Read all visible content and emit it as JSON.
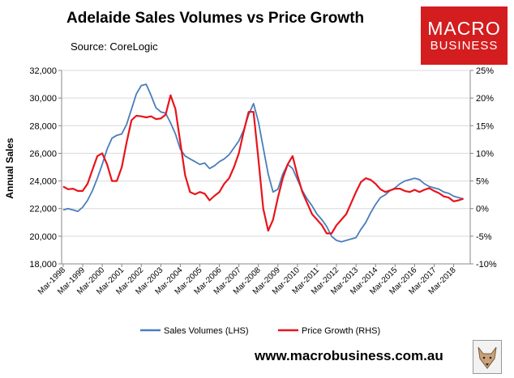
{
  "chart_data": {
    "type": "line",
    "title": "Adelaide Sales Volumes vs Price Growth",
    "subtitle": "Source: CoreLogic",
    "ylabel_left": "Annual Sales",
    "ylabel_right": "",
    "xlabel": "",
    "ylim_left": [
      18000,
      32000
    ],
    "ylim_right": [
      -10,
      25
    ],
    "y_ticks_left": [
      "18,000",
      "20,000",
      "22,000",
      "24,000",
      "26,000",
      "28,000",
      "30,000",
      "32,000"
    ],
    "y_ticks_right": [
      "-10%",
      "-5%",
      "0%",
      "5%",
      "10%",
      "15%",
      "20%",
      "25%"
    ],
    "x_ticks": [
      "Mar-1998",
      "Mar-1999",
      "Mar-2000",
      "Mar-2001",
      "Mar-2002",
      "Mar-2003",
      "Mar-2004",
      "Mar-2005",
      "Mar-2006",
      "Mar-2007",
      "Mar-2008",
      "Mar-2009",
      "Mar-2010",
      "Mar-2011",
      "Mar-2012",
      "Mar-2013",
      "Mar-2014",
      "Mar-2015",
      "Mar-2016",
      "Mar-2017",
      "Mar-2018"
    ],
    "legend_position": "bottom",
    "series": [
      {
        "name": "Sales Volumes (LHS)",
        "axis": "left",
        "color": "#4a7ebb",
        "x": [
          1998.0,
          1998.25,
          1998.5,
          1998.75,
          1999.0,
          1999.25,
          1999.5,
          1999.75,
          2000.0,
          2000.25,
          2000.5,
          2000.75,
          2001.0,
          2001.25,
          2001.5,
          2001.75,
          2002.0,
          2002.25,
          2002.5,
          2002.75,
          2003.0,
          2003.25,
          2003.5,
          2003.75,
          2004.0,
          2004.25,
          2004.5,
          2004.75,
          2005.0,
          2005.25,
          2005.5,
          2005.75,
          2006.0,
          2006.25,
          2006.5,
          2006.75,
          2007.0,
          2007.25,
          2007.5,
          2007.75,
          2008.0,
          2008.25,
          2008.5,
          2008.75,
          2009.0,
          2009.25,
          2009.5,
          2009.75,
          2010.0,
          2010.25,
          2010.5,
          2010.75,
          2011.0,
          2011.25,
          2011.5,
          2011.75,
          2012.0,
          2012.25,
          2012.5,
          2012.75,
          2013.0,
          2013.25,
          2013.5,
          2013.75,
          2014.0,
          2014.25,
          2014.5,
          2014.75,
          2015.0,
          2015.25,
          2015.5,
          2015.75,
          2016.0,
          2016.25,
          2016.5,
          2016.75,
          2017.0,
          2017.25,
          2017.5,
          2017.75,
          2018.0,
          2018.25,
          2018.5
        ],
        "values": [
          21900,
          22000,
          21900,
          21800,
          22100,
          22600,
          23300,
          24200,
          25200,
          26300,
          27100,
          27300,
          27400,
          28100,
          29200,
          30300,
          30900,
          31000,
          30200,
          29300,
          29000,
          28900,
          28200,
          27400,
          26300,
          25800,
          25600,
          25400,
          25200,
          25300,
          24900,
          25100,
          25400,
          25600,
          25900,
          26400,
          26900,
          27700,
          28800,
          29600,
          28300,
          26400,
          24500,
          23200,
          23400,
          24500,
          25200,
          24900,
          24100,
          23300,
          22700,
          22200,
          21600,
          21200,
          20700,
          20000,
          19700,
          19600,
          19700,
          19800,
          19900,
          20500,
          21000,
          21700,
          22300,
          22800,
          23000,
          23300,
          23500,
          23800,
          24000,
          24100,
          24200,
          24100,
          23800,
          23600,
          23500,
          23400,
          23200,
          23100,
          22900,
          22800,
          22700
        ]
      },
      {
        "name": "Price Growth (RHS)",
        "axis": "right",
        "color": "#e8141b",
        "x": [
          1998.0,
          1998.25,
          1998.5,
          1998.75,
          1999.0,
          1999.25,
          1999.5,
          1999.75,
          2000.0,
          2000.25,
          2000.5,
          2000.75,
          2001.0,
          2001.25,
          2001.5,
          2001.75,
          2002.0,
          2002.25,
          2002.5,
          2002.75,
          2003.0,
          2003.25,
          2003.5,
          2003.75,
          2004.0,
          2004.25,
          2004.5,
          2004.75,
          2005.0,
          2005.25,
          2005.5,
          2005.75,
          2006.0,
          2006.25,
          2006.5,
          2006.75,
          2007.0,
          2007.25,
          2007.5,
          2007.75,
          2008.0,
          2008.25,
          2008.5,
          2008.75,
          2009.0,
          2009.25,
          2009.5,
          2009.75,
          2010.0,
          2010.25,
          2010.5,
          2010.75,
          2011.0,
          2011.25,
          2011.5,
          2011.75,
          2012.0,
          2012.25,
          2012.5,
          2012.75,
          2013.0,
          2013.25,
          2013.5,
          2013.75,
          2014.0,
          2014.25,
          2014.5,
          2014.75,
          2015.0,
          2015.25,
          2015.5,
          2015.75,
          2016.0,
          2016.25,
          2016.5,
          2016.75,
          2017.0,
          2017.25,
          2017.5,
          2017.75,
          2018.0,
          2018.25,
          2018.5
        ],
        "values": [
          4,
          3.5,
          3.6,
          3.2,
          3.2,
          4.5,
          7,
          9.5,
          10,
          8,
          5,
          5,
          7.5,
          12,
          16,
          16.8,
          16.7,
          16.5,
          16.7,
          16.2,
          16.3,
          17,
          20.5,
          18,
          12,
          6,
          3,
          2.6,
          3,
          2.7,
          1.5,
          2.3,
          3,
          4.5,
          5.5,
          7.5,
          10,
          14,
          17.5,
          17.5,
          9,
          0,
          -4,
          -2,
          2,
          5.5,
          8,
          9.5,
          6,
          3,
          1,
          -1,
          -2,
          -3,
          -4.5,
          -4.5,
          -3,
          -2,
          -1,
          1,
          3,
          4.8,
          5.5,
          5.2,
          4.5,
          3.5,
          3,
          3.3,
          3.6,
          3.6,
          3.2,
          3,
          3.4,
          3,
          3.4,
          3.7,
          3.2,
          2.8,
          2.2,
          2,
          1.3,
          1.5,
          1.8
        ]
      }
    ]
  },
  "footer": {
    "website": "www.macrobusiness.com.au"
  },
  "logo": {
    "line1": "MACRO",
    "line2": "BUSINESS",
    "color": "#d31d1f"
  }
}
